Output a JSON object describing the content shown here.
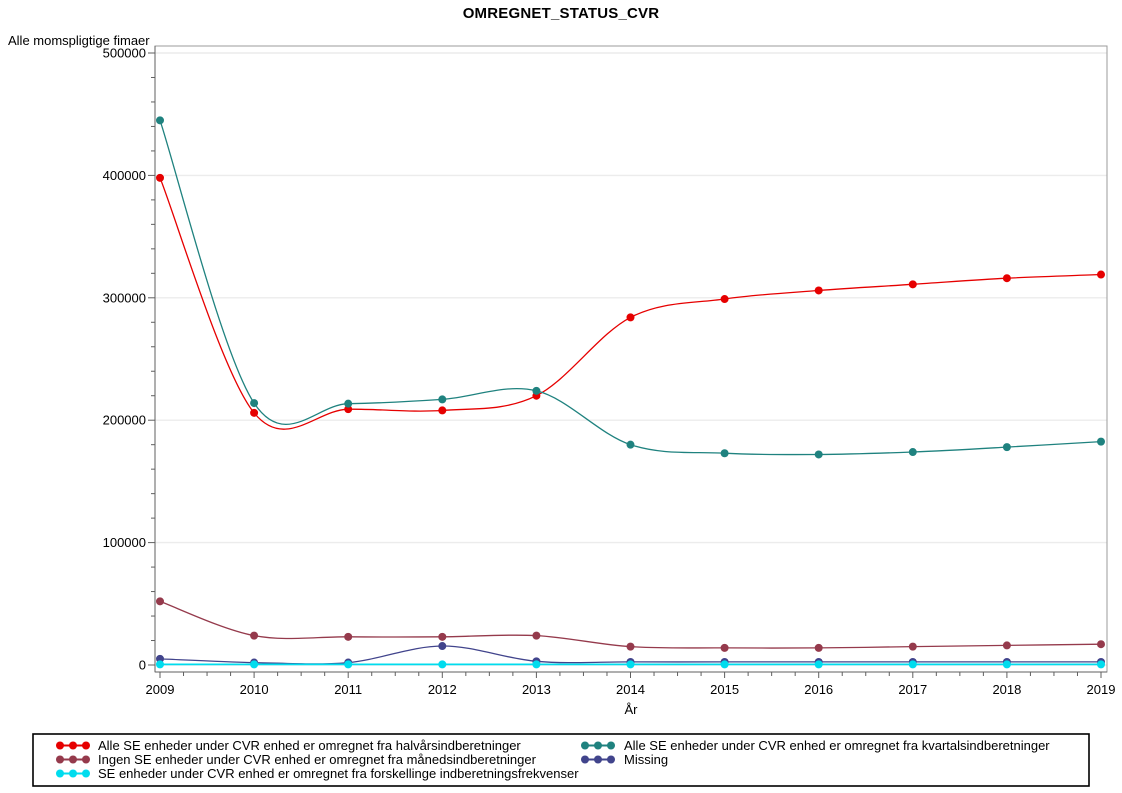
{
  "title": "OMREGNET_STATUS_CVR",
  "chart_data": {
    "type": "line",
    "title": "OMREGNET_STATUS_CVR",
    "ylabel": "Alle momspligtige fimaer",
    "xlabel": "År",
    "categories": [
      "2009",
      "2010",
      "2011",
      "2012",
      "2013",
      "2014",
      "2015",
      "2016",
      "2017",
      "2018",
      "2019"
    ],
    "ylim": [
      0,
      500000
    ],
    "yticks": [
      0,
      100000,
      200000,
      300000,
      400000,
      500000
    ],
    "grid": true,
    "legend_position": "bottom",
    "marker": "filled-circle",
    "line_style": "smooth-spline",
    "series": [
      {
        "name": "Alle SE enheder under CVR enhed er omregnet fra halvårsindberetninger",
        "color": "#e60000",
        "values": [
          398000,
          206000,
          209000,
          208000,
          220000,
          284000,
          299000,
          306000,
          311000,
          316000,
          319000
        ]
      },
      {
        "name": "Alle SE enheder under CVR enhed er omregnet fra kvartalsindberetninger",
        "color": "#1f827f",
        "values": [
          445000,
          214000,
          213500,
          217000,
          224000,
          180000,
          173000,
          172000,
          174000,
          178000,
          182500
        ]
      },
      {
        "name": "Ingen SE enheder under CVR enhed er omregnet fra månedsindberetninger",
        "color": "#953a4c",
        "values": [
          52000,
          24000,
          23000,
          23000,
          24000,
          15000,
          14000,
          14000,
          15000,
          16000,
          17000
        ]
      },
      {
        "name": "Missing",
        "color": "#41448c",
        "values": [
          5000,
          2000,
          2000,
          15500,
          3000,
          2500,
          2500,
          2500,
          2500,
          2500,
          2500
        ]
      },
      {
        "name": "SE enheder under CVR enhed er omregnet fra forskellinge indberetningsfrekvenser",
        "color": "#00dcee",
        "values": [
          500,
          500,
          500,
          500,
          500,
          500,
          500,
          500,
          500,
          500,
          500
        ]
      }
    ],
    "legend_columns": [
      [
        0,
        2,
        4
      ],
      [
        1,
        3
      ]
    ],
    "colors": {
      "grid": "#ececec",
      "frame": "#9b9b9b",
      "axis": "#5f5f5f",
      "legend_border": "#000000",
      "background": "#ffffff"
    }
  }
}
